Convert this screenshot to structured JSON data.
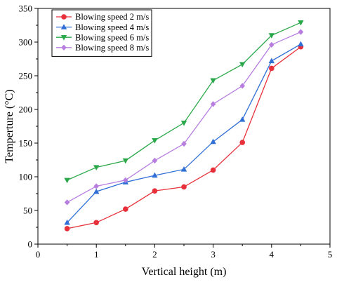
{
  "chart_data": {
    "type": "line",
    "xlabel": "Vertical height (m)",
    "ylabel": "Temperture (°C)",
    "xlim": [
      0,
      5
    ],
    "ylim": [
      0,
      350
    ],
    "xticks": [
      0,
      1,
      2,
      3,
      4,
      5
    ],
    "yticks": [
      0,
      50,
      100,
      150,
      200,
      250,
      300,
      350
    ],
    "grid": false,
    "legend_position": "top-left",
    "x": [
      0.5,
      1.0,
      1.5,
      2.0,
      2.5,
      3.0,
      3.5,
      4.0,
      4.5
    ],
    "series": [
      {
        "name": "Blowing speed 2 m/s",
        "color": "#e8303a",
        "marker": "circle",
        "values": [
          23,
          32,
          52,
          79,
          85,
          110,
          151,
          261,
          293
        ]
      },
      {
        "name": "Blowing speed 4 m/s",
        "color": "#2f6fd6",
        "marker": "triangle-up",
        "values": [
          32,
          78,
          92,
          102,
          111,
          152,
          185,
          272,
          297
        ]
      },
      {
        "name": "Blowing speed 6 m/s",
        "color": "#2ba84a",
        "marker": "triangle-down",
        "values": [
          95,
          114,
          124,
          154,
          180,
          243,
          267,
          310,
          329
        ]
      },
      {
        "name": "Blowing speed 8 m/s",
        "color": "#b77ee0",
        "marker": "diamond",
        "values": [
          62,
          86,
          95,
          124,
          149,
          208,
          235,
          296,
          315
        ]
      }
    ]
  }
}
